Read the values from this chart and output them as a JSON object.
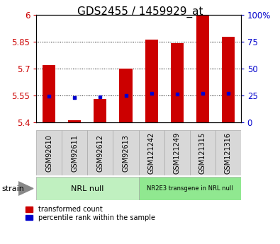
{
  "title": "GDS2455 / 1459929_at",
  "samples": [
    "GSM92610",
    "GSM92611",
    "GSM92612",
    "GSM92613",
    "GSM121242",
    "GSM121249",
    "GSM121315",
    "GSM121316"
  ],
  "red_values": [
    5.72,
    5.41,
    5.53,
    5.7,
    5.86,
    5.84,
    6.0,
    5.875
  ],
  "blue_values": [
    5.545,
    5.535,
    5.54,
    5.548,
    5.562,
    5.558,
    5.562,
    5.562
  ],
  "ylim_left": [
    5.4,
    6.0
  ],
  "ylim_right": [
    0,
    100
  ],
  "yticks_left": [
    5.4,
    5.55,
    5.7,
    5.85,
    6.0
  ],
  "yticks_right": [
    0,
    25,
    50,
    75,
    100
  ],
  "ytick_labels_left": [
    "5.4",
    "5.55",
    "5.7",
    "5.85",
    "6"
  ],
  "ytick_labels_right": [
    "0",
    "25",
    "50",
    "75",
    "100%"
  ],
  "group1_label": "NRL null",
  "group2_label": "NR2E3 transgene in NRL null",
  "group1_n": 4,
  "group2_n": 4,
  "group1_color": "#c0f0c0",
  "group2_color": "#90e890",
  "bar_color": "#cc0000",
  "blue_color": "#0000cc",
  "bar_width": 0.5,
  "baseline": 5.4,
  "legend_red": "transformed count",
  "legend_blue": "percentile rank within the sample",
  "strain_label": "strain",
  "title_fontsize": 11,
  "tick_fontsize": 8.5,
  "label_fontsize": 7,
  "group_fontsize": 8
}
